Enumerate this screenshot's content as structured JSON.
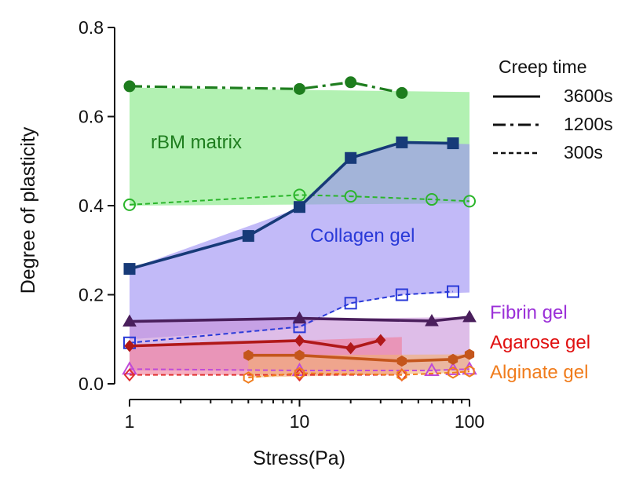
{
  "chart_data": {
    "type": "line",
    "xlabel": "Stress(Pa)",
    "ylabel": "Degree of plasticity",
    "xscale": "log",
    "xlim": [
      1,
      100
    ],
    "ylim": [
      0,
      0.8
    ],
    "xticks": [
      {
        "value": 1,
        "label": "1"
      },
      {
        "value": 10,
        "label": "10"
      },
      {
        "value": 100,
        "label": "100"
      }
    ],
    "yticks": [
      {
        "value": 0.0,
        "label": "0.0"
      },
      {
        "value": 0.2,
        "label": "0.2"
      },
      {
        "value": 0.4,
        "label": "0.4"
      },
      {
        "value": 0.6,
        "label": "0.6"
      },
      {
        "value": 0.8,
        "label": "0.8"
      }
    ],
    "grid": false,
    "legend": {
      "title": "Creep time",
      "placement": "top-right",
      "entries": [
        {
          "label": "3600s",
          "style": "solid"
        },
        {
          "label": "1200s",
          "style": "dashdot"
        },
        {
          "label": "300s",
          "style": "dotted"
        }
      ]
    },
    "materials": [
      {
        "name": "rBM matrix",
        "color": "#1e7d1e",
        "band_color": "#7ee87e",
        "band": {
          "x": [
            1,
            100
          ],
          "lower": [
            0.4,
            0.405
          ],
          "upper": [
            0.665,
            0.655
          ]
        },
        "series": [
          {
            "creep": "1200s",
            "marker": "circle-filled",
            "x": [
              1,
              10,
              20,
              40
            ],
            "y": [
              0.668,
              0.662,
              0.677,
              0.653
            ]
          },
          {
            "creep": "300s",
            "marker": "circle-open",
            "color": "#2bb52b",
            "x": [
              1,
              10,
              20,
              60,
              100
            ],
            "y": [
              0.402,
              0.424,
              0.421,
              0.414,
              0.41
            ]
          }
        ]
      },
      {
        "name": "Collagen gel",
        "color": "#173a78",
        "label_color": "#2a3ad8",
        "band_color": "#9a8cf4",
        "band": {
          "x": [
            1,
            10,
            20,
            40,
            100
          ],
          "lower": [
            0.1,
            0.125,
            0.18,
            0.2,
            0.205
          ],
          "upper": [
            0.258,
            0.395,
            0.507,
            0.542,
            0.538
          ]
        },
        "series": [
          {
            "creep": "3600s",
            "marker": "square-filled",
            "x": [
              1,
              5,
              10,
              20,
              40,
              80
            ],
            "y": [
              0.258,
              0.332,
              0.397,
              0.507,
              0.542,
              0.54
            ]
          },
          {
            "creep": "300s",
            "marker": "square-open",
            "color": "#2a3ad8",
            "x": [
              1,
              10,
              20,
              40,
              80
            ],
            "y": [
              0.092,
              0.128,
              0.181,
              0.2,
              0.207
            ]
          }
        ]
      },
      {
        "name": "Fibrin gel",
        "color": "#4a1f5c",
        "label_color": "#9b30d8",
        "band_color": "#c891d8",
        "band": {
          "x": [
            1,
            100
          ],
          "lower": [
            0.03,
            0.03
          ],
          "upper": [
            0.14,
            0.15
          ]
        },
        "series": [
          {
            "creep": "3600s",
            "marker": "triangle-filled",
            "x": [
              1,
              10,
              60,
              100
            ],
            "y": [
              0.14,
              0.147,
              0.141,
              0.15
            ]
          },
          {
            "creep": "300s",
            "marker": "triangle-open",
            "color": "#c04ad8",
            "x": [
              1,
              10,
              60,
              80,
              100
            ],
            "y": [
              0.033,
              0.03,
              0.03,
              0.032,
              0.033
            ]
          }
        ]
      },
      {
        "name": "Agarose gel",
        "color": "#b01818",
        "label_color": "#e01010",
        "band_color": "#f07a98",
        "band": {
          "x": [
            1,
            40
          ],
          "lower": [
            0.02,
            0.02
          ],
          "upper": [
            0.085,
            0.105
          ]
        },
        "series": [
          {
            "creep": "3600s",
            "marker": "diamond-filled",
            "x": [
              1,
              10,
              20,
              30
            ],
            "y": [
              0.085,
              0.097,
              0.08,
              0.098
            ]
          },
          {
            "creep": "300s",
            "marker": "diamond-open",
            "color": "#e03030",
            "x": [
              1,
              10,
              40
            ],
            "y": [
              0.02,
              0.02,
              0.02
            ]
          }
        ]
      },
      {
        "name": "Alginate gel",
        "color": "#c4561c",
        "label_color": "#f07c1c",
        "band_color": "#f4b070",
        "band": {
          "x": [
            5,
            100
          ],
          "lower": [
            0.014,
            0.025
          ],
          "upper": [
            0.064,
            0.066
          ]
        },
        "series": [
          {
            "creep": "3600s",
            "marker": "hexagon-filled",
            "x": [
              5,
              10,
              40,
              80,
              100
            ],
            "y": [
              0.064,
              0.064,
              0.051,
              0.055,
              0.066
            ]
          },
          {
            "creep": "300s",
            "marker": "hexagon-open",
            "color": "#f07c1c",
            "x": [
              5,
              10,
              40,
              80,
              100
            ],
            "y": [
              0.014,
              0.024,
              0.02,
              0.025,
              0.028
            ]
          }
        ]
      }
    ]
  }
}
